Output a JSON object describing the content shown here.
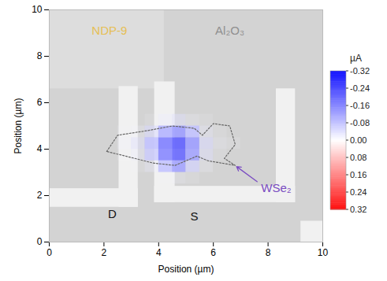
{
  "chart_data": {
    "type": "heatmap",
    "x_label": "Position (µm)",
    "y_label": "Position (µm)",
    "xlim": [
      0,
      10
    ],
    "ylim": [
      0,
      10
    ],
    "xticks": [
      0,
      2,
      4,
      6,
      8,
      10
    ],
    "yticks": [
      0,
      2,
      4,
      6,
      8,
      10
    ],
    "cells": {
      "x": [
        2.75,
        3.25,
        3.75,
        4.25,
        4.75,
        5.25,
        5.75,
        6.25,
        6.75
      ],
      "y": [
        2.75,
        3.25,
        3.75,
        4.25,
        4.75,
        5.25,
        5.75
      ],
      "values": [
        [
          0,
          0,
          0,
          -0.01,
          -0.02,
          -0.01,
          0,
          0,
          0
        ],
        [
          0,
          -0.01,
          -0.03,
          -0.08,
          -0.12,
          -0.06,
          -0.02,
          0,
          0
        ],
        [
          -0.01,
          -0.03,
          -0.07,
          -0.16,
          -0.2,
          -0.12,
          -0.04,
          -0.01,
          0
        ],
        [
          -0.02,
          -0.04,
          -0.08,
          -0.17,
          -0.21,
          -0.13,
          -0.05,
          -0.02,
          -0.01
        ],
        [
          -0.01,
          -0.02,
          -0.05,
          -0.1,
          -0.13,
          -0.08,
          -0.03,
          -0.01,
          0
        ],
        [
          0,
          0,
          -0.01,
          -0.03,
          -0.04,
          -0.02,
          -0.01,
          0,
          0
        ],
        [
          0,
          0,
          0,
          0,
          0,
          0,
          0,
          0,
          0
        ]
      ]
    },
    "colorbar": {
      "label": "µA",
      "range": [
        -0.32,
        0.32
      ],
      "colors": [
        "#1010ff",
        "#ffffff",
        "#ff1010"
      ],
      "ticks": [
        -0.32,
        -0.24,
        -0.16,
        -0.08,
        {
          "value": 0,
          "label": "0.00"
        },
        0.08,
        0.16,
        0.24,
        0.32
      ]
    },
    "annotations": [
      {
        "text": "NDP-9",
        "x": 2.2,
        "y": 9.1,
        "color": "#e6bf55"
      },
      {
        "text": "Al₂O₃",
        "x": 6.6,
        "y": 9.1,
        "color": "#8f8f8f"
      },
      {
        "text": "WSe₂",
        "x": 8.3,
        "y": 2.3,
        "color": "#7a4cc2"
      },
      {
        "text": "D",
        "x": 2.3,
        "y": 1.2,
        "color": "#111111"
      },
      {
        "text": "S",
        "x": 5.3,
        "y": 1.1,
        "color": "#111111"
      }
    ]
  }
}
